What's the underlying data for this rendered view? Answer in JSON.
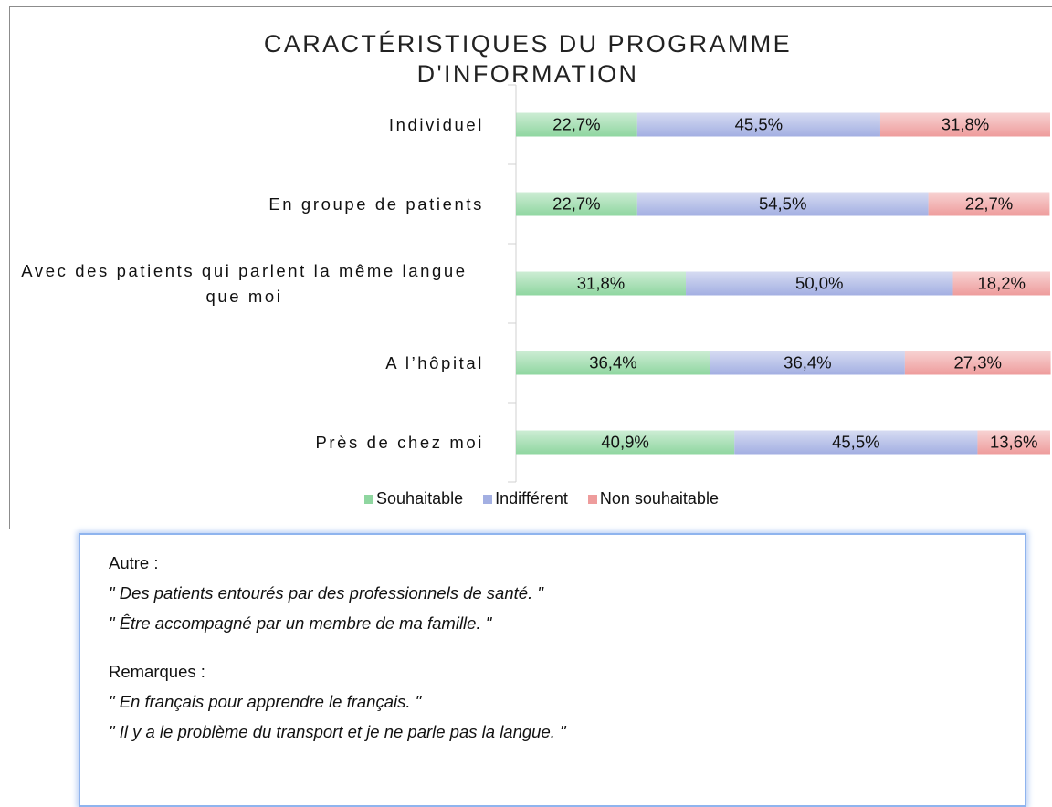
{
  "chart_data": {
    "type": "bar",
    "orientation": "horizontal",
    "stacked": true,
    "title": "CARACTÉRISTIQUES DU PROGRAMME D'INFORMATION",
    "categories": [
      "Individuel",
      "En groupe de patients",
      "Avec des patients qui parlent la même langue que moi",
      "A l’hôpital",
      "Près de chez moi"
    ],
    "xlim": [
      0,
      100
    ],
    "legend": "bottom",
    "series": [
      {
        "name": "Souhaitable",
        "color": "#8fd6a0",
        "values": [
          22.7,
          22.7,
          31.8,
          36.4,
          40.9
        ],
        "value_labels": [
          "22,7%",
          "22,7%",
          "31,8%",
          "36,4%",
          "40,9%"
        ]
      },
      {
        "name": "Indifférent",
        "color": "#a3afe2",
        "values": [
          45.5,
          54.5,
          50.0,
          36.4,
          45.5
        ],
        "value_labels": [
          "45,5%",
          "54,5%",
          "50,0%",
          "36,4%",
          "45,5%"
        ]
      },
      {
        "name": "Non souhaitable",
        "color": "#ee9c9c",
        "values": [
          31.8,
          22.7,
          18.2,
          27.3,
          13.6
        ],
        "value_labels": [
          "31,8%",
          "22,7%",
          "18,2%",
          "27,3%",
          "13,6%"
        ]
      }
    ]
  },
  "notes": {
    "other_heading": "Autre :",
    "other": [
      "\" Des patients entourés par des professionnels de santé. \"",
      "\" Être accompagné par un membre de ma famille. \""
    ],
    "remarks_heading": "Remarques :",
    "remarks": [
      "\" En français pour apprendre le français. \"",
      "\" Il y a le problème du transport et je ne parle pas la langue. \""
    ]
  }
}
